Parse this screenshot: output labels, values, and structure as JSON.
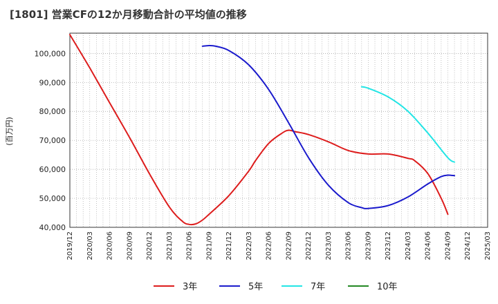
{
  "title": "[1801]  営業CFの12か月移動合計の平均値の推移",
  "chart_data": {
    "type": "line",
    "title": "[1801]  営業CFの12か月移動合計の平均値の推移",
    "ylabel": "(百万円)",
    "xlabel": "",
    "ylim": [
      40000,
      107000
    ],
    "yticks": [
      40000,
      50000,
      60000,
      70000,
      80000,
      90000,
      100000
    ],
    "ytick_labels": [
      "40,000",
      "50,000",
      "60,000",
      "70,000",
      "80,000",
      "90,000",
      "100,000"
    ],
    "xlim": [
      "2019/12",
      "2025/03"
    ],
    "xtick_labels": [
      "2019/12",
      "2020/03",
      "2020/06",
      "2020/09",
      "2020/12",
      "2021/03",
      "2021/06",
      "2021/09",
      "2021/12",
      "2022/03",
      "2022/06",
      "2022/09",
      "2022/12",
      "2023/03",
      "2023/06",
      "2023/09",
      "2023/12",
      "2024/03",
      "2024/06",
      "2024/09",
      "2024/12",
      "2025/03"
    ],
    "grid": true,
    "legend_position": "bottom",
    "series": [
      {
        "name": "3年",
        "color": "#dd1c1c",
        "points": [
          [
            "2019/12",
            106500
          ],
          [
            "2020/03",
            95000
          ],
          [
            "2020/06",
            83000
          ],
          [
            "2020/09",
            71000
          ],
          [
            "2020/12",
            58500
          ],
          [
            "2021/03",
            47000
          ],
          [
            "2021/05",
            42000
          ],
          [
            "2021/06",
            41000
          ],
          [
            "2021/07",
            41200
          ],
          [
            "2021/08",
            42500
          ],
          [
            "2021/09",
            44500
          ],
          [
            "2021/12",
            51000
          ],
          [
            "2022/03",
            59500
          ],
          [
            "2022/04",
            63000
          ],
          [
            "2022/06",
            69000
          ],
          [
            "2022/08",
            72500
          ],
          [
            "2022/09",
            73500
          ],
          [
            "2022/10",
            73000
          ],
          [
            "2022/12",
            72000
          ],
          [
            "2023/03",
            69500
          ],
          [
            "2023/06",
            66500
          ],
          [
            "2023/09",
            65300
          ],
          [
            "2023/12",
            65300
          ],
          [
            "2024/03",
            63800
          ],
          [
            "2024/04",
            63000
          ],
          [
            "2024/06",
            58500
          ],
          [
            "2024/08",
            50000
          ],
          [
            "2024/09",
            44500
          ]
        ]
      },
      {
        "name": "5年",
        "color": "#1a1acc",
        "points": [
          [
            "2021/08",
            102500
          ],
          [
            "2021/09",
            102700
          ],
          [
            "2021/10",
            102500
          ],
          [
            "2021/12",
            101000
          ],
          [
            "2022/03",
            96000
          ],
          [
            "2022/06",
            87500
          ],
          [
            "2022/09",
            76000
          ],
          [
            "2022/12",
            64000
          ],
          [
            "2023/03",
            54500
          ],
          [
            "2023/06",
            48500
          ],
          [
            "2023/08",
            46800
          ],
          [
            "2023/09",
            46500
          ],
          [
            "2023/12",
            47500
          ],
          [
            "2024/03",
            50500
          ],
          [
            "2024/06",
            55000
          ],
          [
            "2024/08",
            57500
          ],
          [
            "2024/09",
            58000
          ],
          [
            "2024/10",
            57800
          ]
        ]
      },
      {
        "name": "7年",
        "color": "#22e5e5",
        "points": [
          [
            "2023/08",
            88500
          ],
          [
            "2023/09",
            88000
          ],
          [
            "2023/12",
            85000
          ],
          [
            "2024/03",
            80000
          ],
          [
            "2024/06",
            72500
          ],
          [
            "2024/09",
            64000
          ],
          [
            "2024/10",
            62500
          ]
        ]
      },
      {
        "name": "10年",
        "color": "#228822",
        "points": []
      }
    ]
  }
}
